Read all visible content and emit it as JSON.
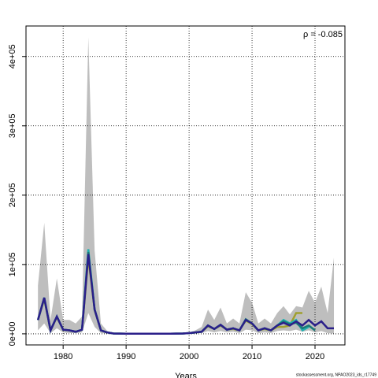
{
  "chart_data": {
    "type": "line",
    "annotation": "ρ = -0.085",
    "x_label": "Years",
    "footer": "stockassessment.org, NPAO2023_ids_r17749",
    "x": [
      1976,
      1977,
      1978,
      1979,
      1980,
      1981,
      1982,
      1983,
      1984,
      1985,
      1986,
      1987,
      1988,
      1989,
      1990,
      1991,
      1992,
      1993,
      1994,
      1995,
      1996,
      1997,
      1998,
      1999,
      2000,
      2001,
      2002,
      2003,
      2004,
      2005,
      2006,
      2007,
      2008,
      2009,
      2010,
      2011,
      2012,
      2013,
      2014,
      2015,
      2016,
      2017,
      2018,
      2019,
      2020,
      2021,
      2022,
      2023
    ],
    "band": {
      "color": "#bebebe",
      "low": [
        5000,
        15000,
        1000,
        8000,
        2000,
        1000,
        1000,
        2000,
        30000,
        10000,
        1000,
        500,
        100,
        100,
        100,
        100,
        100,
        100,
        100,
        100,
        100,
        100,
        100,
        200,
        500,
        1000,
        1000,
        4000,
        2000,
        4000,
        2000,
        3000,
        1000,
        6000,
        5000,
        1000,
        2000,
        1000,
        4000,
        5000,
        4000,
        6000,
        3000,
        5000,
        2000,
        4000,
        1000,
        500
      ],
      "high": [
        70000,
        160000,
        20000,
        80000,
        20000,
        20000,
        15000,
        25000,
        428000,
        120000,
        15000,
        4000,
        1000,
        500,
        500,
        500,
        500,
        500,
        500,
        500,
        500,
        500,
        500,
        500,
        2000,
        5000,
        10000,
        35000,
        20000,
        38000,
        15000,
        22000,
        15000,
        60000,
        45000,
        15000,
        22000,
        15000,
        30000,
        40000,
        28000,
        40000,
        38000,
        62000,
        45000,
        68000,
        30000,
        110000
      ]
    },
    "series": [
      {
        "color": "#a0a030",
        "values": [
          20000,
          50000,
          5000,
          24000,
          6000,
          5000,
          3000,
          6000,
          110000,
          34000,
          5000,
          2000,
          500,
          300,
          200,
          200,
          200,
          200,
          200,
          200,
          200,
          200,
          300,
          500,
          1000,
          2000,
          3000,
          11000,
          7000,
          12000,
          6000,
          7000,
          5000,
          19000,
          14000,
          5000,
          7000,
          5000,
          10000,
          10000,
          12000,
          30000,
          30000,
          null,
          null,
          null,
          null,
          null
        ]
      },
      {
        "color": "#20b0b0",
        "values": [
          20000,
          52000,
          5000,
          25000,
          6000,
          5000,
          3000,
          6000,
          122000,
          35000,
          5000,
          2000,
          500,
          300,
          200,
          200,
          200,
          200,
          200,
          200,
          200,
          200,
          300,
          500,
          1000,
          2000,
          3000,
          12000,
          7000,
          13000,
          6000,
          8000,
          5000,
          20000,
          15000,
          5000,
          8000,
          5000,
          12000,
          20000,
          15000,
          20000,
          5000,
          10000,
          null,
          null,
          null,
          null
        ]
      },
      {
        "color": "#1a7a78",
        "values": [
          20000,
          52000,
          5000,
          25000,
          6000,
          5000,
          3000,
          6000,
          118000,
          35000,
          5000,
          2000,
          500,
          300,
          200,
          200,
          200,
          200,
          200,
          200,
          200,
          200,
          300,
          500,
          1000,
          2000,
          3000,
          12000,
          7000,
          13000,
          6000,
          8000,
          5000,
          21000,
          15000,
          5000,
          8000,
          5000,
          12000,
          18000,
          14000,
          16000,
          8000,
          12000,
          5000,
          null,
          null,
          null
        ]
      },
      {
        "color": "#2b1f8a",
        "values": [
          20000,
          52000,
          5000,
          25000,
          6000,
          5000,
          3000,
          6000,
          115000,
          35000,
          5000,
          2000,
          500,
          300,
          200,
          200,
          200,
          200,
          200,
          200,
          200,
          200,
          300,
          500,
          1000,
          2000,
          3000,
          12000,
          7000,
          13000,
          6000,
          8000,
          5000,
          20000,
          15000,
          5000,
          8000,
          5000,
          12000,
          16000,
          12000,
          18000,
          12000,
          20000,
          12000,
          18000,
          8000,
          8000
        ]
      }
    ],
    "xlim": [
      1974.1,
      2024.75
    ],
    "ylim": [
      -16000,
      444000
    ],
    "xticks": [
      1980,
      1990,
      2000,
      2010,
      2020
    ],
    "yticks": [
      {
        "value": 0,
        "label": "0e+00"
      },
      {
        "value": 100000,
        "label": "1e+05"
      },
      {
        "value": 200000,
        "label": "2e+05"
      },
      {
        "value": 300000,
        "label": "3e+05"
      },
      {
        "value": 400000,
        "label": "4e+05"
      }
    ],
    "grid": true
  }
}
